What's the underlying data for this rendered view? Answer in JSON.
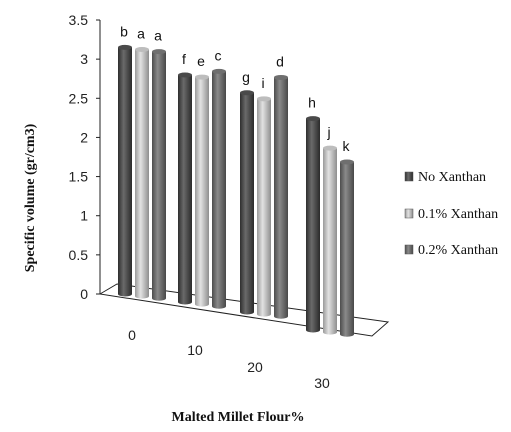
{
  "chart_data": {
    "type": "bar",
    "style": "3d-cylinder",
    "xlabel": "Malted Millet Flour%",
    "ylabel": "Specific volume (gr/cm3)",
    "ylim": [
      0,
      3.5
    ],
    "yticks": [
      "0",
      "0.5",
      "1",
      "1.5",
      "2",
      "2.5",
      "3",
      "3.5"
    ],
    "categories": [
      "0",
      "10",
      "20",
      "30"
    ],
    "series": [
      {
        "name": "No Xanthan",
        "color": "#4a4a4a",
        "values": [
          3.15,
          2.9,
          2.8,
          2.7
        ],
        "letters": [
          "b",
          "f",
          "g",
          "h"
        ]
      },
      {
        "name": "0.1% Xanthan",
        "color": "#bdbdbd",
        "values": [
          3.15,
          2.9,
          2.75,
          2.35
        ],
        "letters": [
          "a",
          "e",
          "i",
          "j"
        ]
      },
      {
        "name": "0.2% Xanthan",
        "color": "#6f6f6f",
        "values": [
          3.15,
          3.0,
          3.05,
          2.2
        ],
        "letters": [
          "a",
          "c",
          "d",
          "k"
        ]
      }
    ],
    "legend": "right",
    "grid": false
  }
}
